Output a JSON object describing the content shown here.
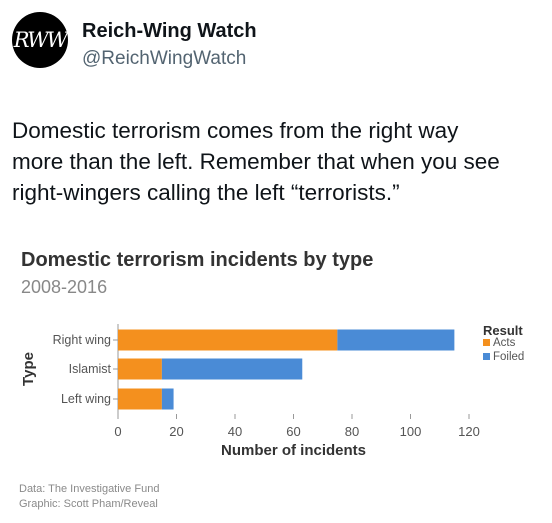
{
  "post": {
    "avatar_text": "RWW",
    "display_name": "Reich-Wing Watch",
    "handle": "@ReichWingWatch",
    "text_lines": [
      "Domestic terrorism comes from the right way",
      "more than the left. Remember that when you see",
      "right-wingers calling the left “terrorists.”"
    ]
  },
  "colors": {
    "acts": "#f4901e",
    "foiled": "#4a8bd6",
    "axis": "#999999",
    "text": "#333333"
  },
  "chart_data": {
    "type": "bar",
    "orientation": "horizontal",
    "stacked": true,
    "title": "Domestic terrorism incidents by type",
    "subtitle": "2008-2016",
    "xlabel": "Number of incidents",
    "ylabel": "Type",
    "categories": [
      "Right wing",
      "Islamist",
      "Left wing"
    ],
    "series": [
      {
        "name": "Acts",
        "values": [
          75,
          15,
          15
        ]
      },
      {
        "name": "Foiled",
        "values": [
          40,
          48,
          4
        ]
      }
    ],
    "xlim": [
      0,
      120
    ],
    "xticks": [
      0,
      20,
      40,
      60,
      80,
      100,
      120
    ],
    "legend_title": "Result",
    "legend_position": "right",
    "grid": false,
    "source_lines": [
      "Data: The Investigative Fund",
      "Graphic: Scott Pham/Reveal"
    ]
  }
}
